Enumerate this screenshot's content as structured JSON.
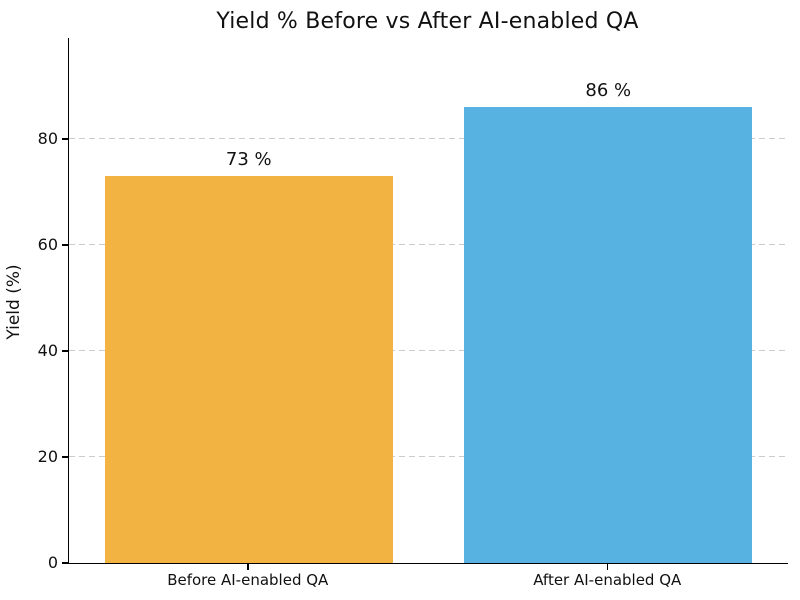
{
  "chart_data": {
    "type": "bar",
    "title": "Yield % Before vs After AI-enabled QA",
    "xlabel": "",
    "ylabel": "Yield (%)",
    "categories": [
      "Before AI-enabled QA",
      "After AI-enabled QA"
    ],
    "values": [
      73,
      86
    ],
    "bar_labels": [
      "73 %",
      "86 %"
    ],
    "bar_colors": [
      "#f2b342",
      "#58b2e1"
    ],
    "ylim": [
      0,
      99
    ],
    "yticks": [
      0,
      20,
      40,
      60,
      80
    ],
    "grid": "horizontal dashed gridlines at y-ticks, behind bars",
    "grid_color": "#cccccc",
    "legend": "none",
    "background_color": "#ffffff",
    "bar_width_fraction": 0.4
  }
}
